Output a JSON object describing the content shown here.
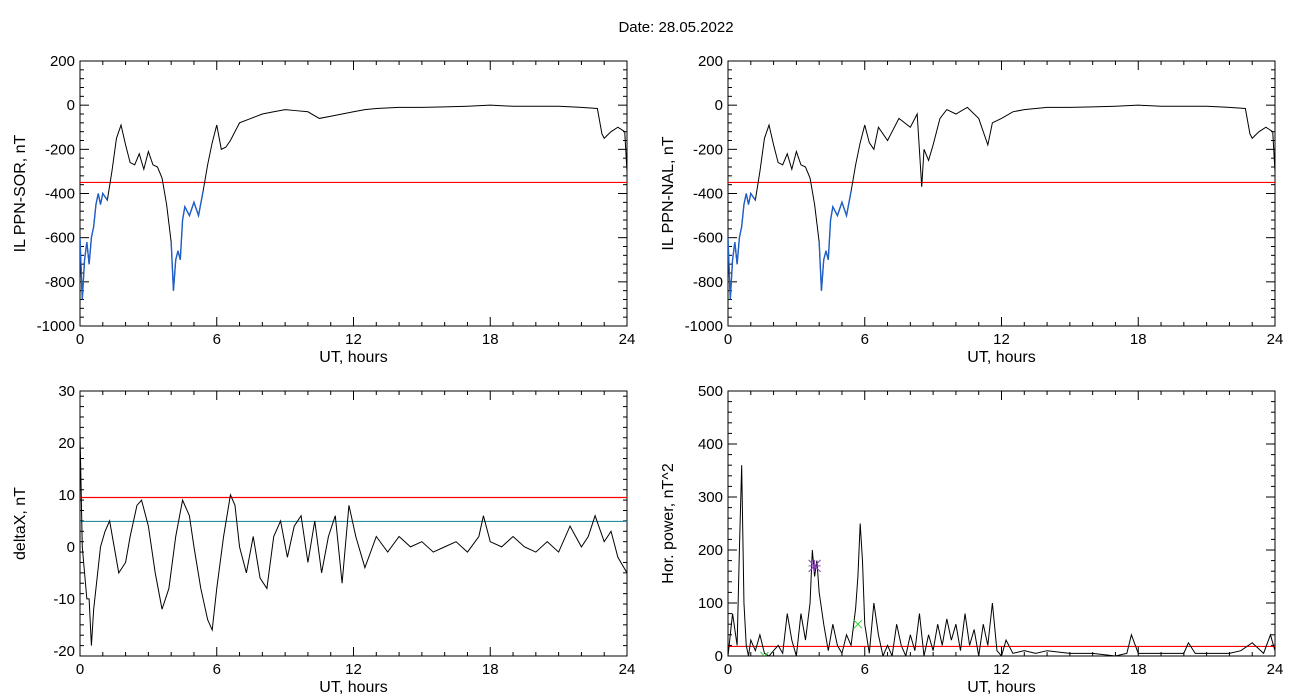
{
  "header": {
    "date_label": "Date:  28.05.2022"
  },
  "colors": {
    "trace": "#000000",
    "highlight": "#1f5fc8",
    "threshold": "#ff0000",
    "threshold2": "#2a8fa0",
    "marker_star": "#8a3fb8",
    "marker_green": "#33cc33"
  },
  "chart_data": [
    {
      "id": "panel-sor",
      "type": "line",
      "title": "",
      "xlabel": "UT, hours",
      "ylabel": "IL PPN-SOR, nT",
      "xlim": [
        0,
        24
      ],
      "ylim": [
        -1000,
        200
      ],
      "xticks": [
        0,
        6,
        12,
        18,
        24
      ],
      "yticks": [
        200,
        0,
        -200,
        -400,
        -600,
        -800,
        -1000
      ],
      "series": [
        {
          "x": [
            0,
            0.1,
            0.2,
            0.3,
            0.4,
            0.5,
            0.6,
            0.7,
            0.8,
            0.9,
            1.0,
            1.2,
            1.4,
            1.6,
            1.8,
            2.0,
            2.2,
            2.4,
            2.6,
            2.8,
            3.0,
            3.2,
            3.4,
            3.6,
            3.8,
            4.0,
            4.1,
            4.2,
            4.3,
            4.4,
            4.5,
            4.6,
            4.8,
            5.0,
            5.2,
            5.4,
            5.6,
            5.8,
            6.0,
            6.2,
            6.4,
            6.6,
            6.8,
            7.0,
            7.5,
            8.0,
            8.5,
            9.0,
            9.5,
            10.0,
            10.5,
            11.0,
            11.5,
            12.0,
            12.5,
            13.0,
            14.0,
            15.0,
            16.0,
            17.0,
            18.0,
            19.0,
            20.0,
            21.0,
            22.0,
            22.7,
            22.9,
            23.0,
            23.3,
            23.6,
            23.9,
            24.0
          ],
          "y": [
            -600,
            -880,
            -700,
            -620,
            -720,
            -600,
            -550,
            -450,
            -400,
            -450,
            -400,
            -430,
            -300,
            -150,
            -90,
            -180,
            -260,
            -270,
            -220,
            -290,
            -210,
            -270,
            -280,
            -330,
            -450,
            -620,
            -840,
            -700,
            -660,
            -700,
            -520,
            -460,
            -500,
            -440,
            -500,
            -390,
            -270,
            -170,
            -90,
            -200,
            -190,
            -160,
            -120,
            -80,
            -60,
            -40,
            -30,
            -20,
            -25,
            -30,
            -60,
            -50,
            -40,
            -30,
            -20,
            -15,
            -10,
            -10,
            -8,
            -5,
            0,
            -5,
            -5,
            -5,
            -10,
            -15,
            -130,
            -150,
            -120,
            -100,
            -120,
            -300
          ]
        }
      ],
      "highlight_ranges": [
        [
          0,
          1.3
        ],
        [
          4.0,
          5.5
        ]
      ],
      "threshold": -350
    },
    {
      "id": "panel-nal",
      "type": "line",
      "title": "",
      "xlabel": "UT, hours",
      "ylabel": "IL PPN-NAL, nT",
      "xlim": [
        0,
        24
      ],
      "ylim": [
        -1000,
        200
      ],
      "xticks": [
        0,
        6,
        12,
        18,
        24
      ],
      "yticks": [
        200,
        0,
        -200,
        -400,
        -600,
        -800,
        -1000
      ],
      "series": [
        {
          "x": [
            0,
            0.1,
            0.2,
            0.3,
            0.4,
            0.5,
            0.6,
            0.7,
            0.8,
            0.9,
            1.0,
            1.2,
            1.4,
            1.6,
            1.8,
            2.0,
            2.2,
            2.4,
            2.6,
            2.8,
            3.0,
            3.2,
            3.4,
            3.6,
            3.8,
            4.0,
            4.1,
            4.2,
            4.3,
            4.4,
            4.5,
            4.6,
            4.8,
            5.0,
            5.2,
            5.4,
            5.6,
            5.8,
            6.0,
            6.2,
            6.4,
            6.6,
            7.0,
            7.5,
            8.0,
            8.3,
            8.5,
            8.6,
            8.8,
            9.0,
            9.3,
            9.6,
            10.0,
            10.5,
            11.0,
            11.4,
            11.6,
            12.0,
            12.5,
            13.0,
            14.0,
            15.0,
            16.0,
            17.0,
            18.0,
            19.0,
            20.0,
            21.0,
            22.0,
            22.7,
            22.9,
            23.0,
            23.3,
            23.6,
            23.9,
            24.0
          ],
          "y": [
            -600,
            -880,
            -700,
            -620,
            -720,
            -600,
            -550,
            -450,
            -400,
            -450,
            -400,
            -430,
            -300,
            -150,
            -90,
            -180,
            -260,
            -270,
            -220,
            -290,
            -210,
            -270,
            -280,
            -330,
            -450,
            -620,
            -840,
            -700,
            -660,
            -700,
            -520,
            -460,
            -500,
            -440,
            -500,
            -390,
            -270,
            -170,
            -90,
            -170,
            -200,
            -100,
            -160,
            -60,
            -100,
            -40,
            -370,
            -200,
            -250,
            -180,
            -60,
            -20,
            -40,
            -10,
            -60,
            -180,
            -80,
            -60,
            -30,
            -20,
            -10,
            -10,
            -8,
            -5,
            0,
            -5,
            -5,
            -5,
            -10,
            -15,
            -130,
            -150,
            -120,
            -100,
            -120,
            -300
          ]
        }
      ],
      "highlight_ranges": [
        [
          0,
          1.3
        ],
        [
          4.0,
          5.5
        ]
      ],
      "threshold": -350
    },
    {
      "id": "panel-deltax",
      "type": "line",
      "title": "",
      "xlabel": "UT, hours",
      "ylabel": "deltaX, nT",
      "xlim": [
        0,
        24
      ],
      "ylim": [
        -21,
        30
      ],
      "xticks": [
        0,
        6,
        12,
        18,
        24
      ],
      "yticks": [
        30,
        20,
        10,
        0,
        -10,
        -20
      ],
      "series": [
        {
          "x": [
            0,
            0.1,
            0.2,
            0.3,
            0.4,
            0.5,
            0.6,
            0.7,
            0.9,
            1.1,
            1.3,
            1.5,
            1.7,
            2.0,
            2.2,
            2.5,
            2.7,
            3.0,
            3.3,
            3.6,
            3.9,
            4.2,
            4.5,
            4.8,
            5.0,
            5.3,
            5.6,
            5.8,
            6.0,
            6.3,
            6.6,
            6.8,
            7.0,
            7.3,
            7.6,
            7.9,
            8.2,
            8.5,
            8.8,
            9.1,
            9.4,
            9.7,
            10.0,
            10.3,
            10.6,
            10.9,
            11.2,
            11.5,
            11.8,
            12.1,
            12.5,
            13.0,
            13.5,
            14.0,
            14.5,
            15.0,
            15.5,
            16.0,
            16.5,
            17.0,
            17.5,
            17.7,
            18.0,
            18.5,
            19.0,
            19.5,
            20.0,
            20.5,
            21.0,
            21.5,
            22.0,
            22.3,
            22.6,
            23.0,
            23.3,
            23.6,
            24.0
          ],
          "y": [
            22,
            0,
            -5,
            -10,
            -10,
            -19,
            -12,
            -8,
            0,
            3,
            5,
            0,
            -5,
            -3,
            2,
            8,
            9,
            4,
            -5,
            -12,
            -8,
            2,
            9,
            6,
            0,
            -8,
            -14,
            -16,
            -8,
            2,
            10,
            8,
            0,
            -5,
            2,
            -6,
            -8,
            2,
            5,
            -2,
            4,
            6,
            -3,
            5,
            -5,
            2,
            6,
            -7,
            8,
            2,
            -4,
            2,
            -1,
            2,
            0,
            1,
            -1,
            0,
            1,
            -1,
            2,
            6,
            1,
            0,
            2,
            0,
            -1,
            1,
            -1,
            4,
            0,
            2,
            6,
            1,
            3,
            -2,
            -5
          ]
        }
      ],
      "thresholds": [
        9.5,
        4.9
      ]
    },
    {
      "id": "panel-power",
      "type": "line",
      "title": "",
      "xlabel": "UT, hours",
      "ylabel": "Hor. power, nT^2",
      "xlim": [
        0,
        24
      ],
      "ylim": [
        0,
        500
      ],
      "xticks": [
        0,
        6,
        12,
        18,
        24
      ],
      "yticks": [
        500,
        400,
        300,
        200,
        100,
        0
      ],
      "series": [
        {
          "x": [
            0,
            0.2,
            0.4,
            0.5,
            0.6,
            0.7,
            0.8,
            0.9,
            1.0,
            1.2,
            1.4,
            1.6,
            1.8,
            2.0,
            2.2,
            2.4,
            2.6,
            2.8,
            3.0,
            3.2,
            3.4,
            3.6,
            3.7,
            3.8,
            3.9,
            4.0,
            4.2,
            4.4,
            4.6,
            4.8,
            5.0,
            5.2,
            5.4,
            5.6,
            5.7,
            5.8,
            5.9,
            6.0,
            6.2,
            6.4,
            6.6,
            6.8,
            7.0,
            7.2,
            7.4,
            7.6,
            7.8,
            8.0,
            8.2,
            8.4,
            8.6,
            8.8,
            9.0,
            9.2,
            9.4,
            9.6,
            9.8,
            10.0,
            10.2,
            10.4,
            10.6,
            10.8,
            11.0,
            11.2,
            11.4,
            11.6,
            11.8,
            12.0,
            12.2,
            12.5,
            13.0,
            13.5,
            14.0,
            15.0,
            16.0,
            17.0,
            17.5,
            17.7,
            18.0,
            19.0,
            20.0,
            20.2,
            20.5,
            21.0,
            22.0,
            22.5,
            23.0,
            23.5,
            23.8,
            24.0
          ],
          "y": [
            0,
            80,
            20,
            200,
            360,
            100,
            20,
            0,
            30,
            10,
            40,
            5,
            0,
            10,
            20,
            5,
            80,
            30,
            0,
            80,
            30,
            100,
            200,
            150,
            180,
            120,
            60,
            10,
            60,
            20,
            5,
            40,
            20,
            90,
            150,
            250,
            180,
            60,
            5,
            100,
            40,
            0,
            20,
            0,
            60,
            20,
            0,
            40,
            10,
            80,
            0,
            40,
            10,
            60,
            20,
            70,
            30,
            60,
            10,
            80,
            20,
            50,
            0,
            60,
            20,
            100,
            10,
            0,
            30,
            5,
            10,
            5,
            10,
            5,
            5,
            0,
            5,
            40,
            5,
            5,
            5,
            25,
            5,
            5,
            5,
            10,
            25,
            5,
            40,
            10
          ]
        }
      ],
      "threshold": 18,
      "markers": [
        {
          "x": 3.8,
          "y": 170,
          "shape": "star",
          "color": "marker_star"
        },
        {
          "x": 1.6,
          "y": 0,
          "shape": "x",
          "color": "marker_green"
        },
        {
          "x": 5.7,
          "y": 60,
          "shape": "x",
          "color": "marker_green"
        }
      ]
    }
  ]
}
